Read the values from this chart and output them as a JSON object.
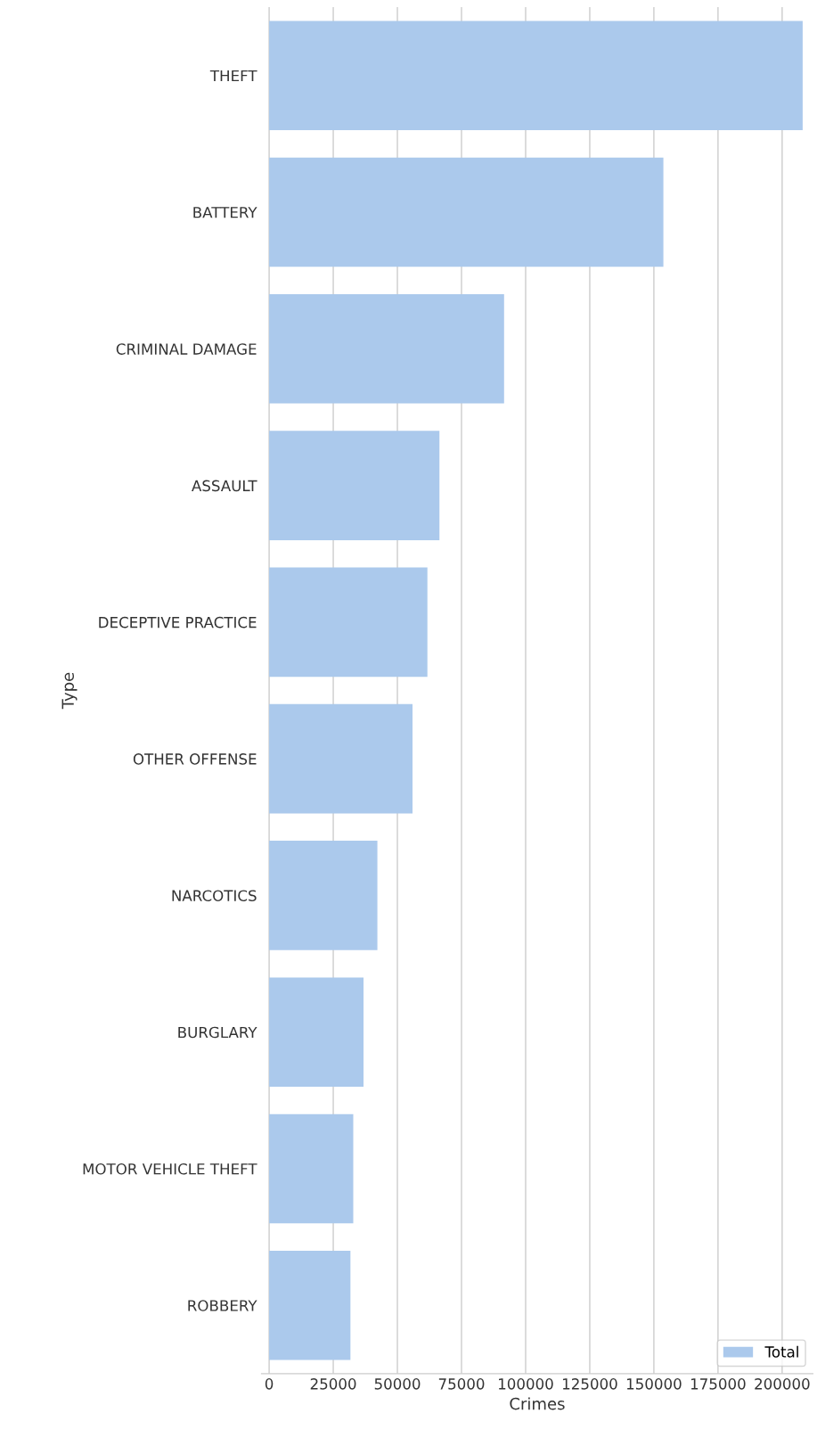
{
  "chart_data": {
    "type": "bar",
    "orientation": "horizontal",
    "xlabel": "Crimes",
    "ylabel": "Type",
    "categories": [
      "THEFT",
      "BATTERY",
      "CRIMINAL DAMAGE",
      "ASSAULT",
      "DECEPTIVE PRACTICE",
      "OTHER OFFENSE",
      "NARCOTICS",
      "BURGLARY",
      "MOTOR VEHICLE THEFT",
      "ROBBERY"
    ],
    "series": [
      {
        "name": "Total",
        "color": "#abc9ec",
        "values": [
          208000,
          153700,
          91600,
          66400,
          61700,
          55900,
          42200,
          36800,
          32800,
          31700
        ]
      }
    ],
    "xlim": [
      -3000,
      212000
    ],
    "xticks": [
      0,
      25000,
      50000,
      75000,
      100000,
      125000,
      150000,
      175000,
      200000
    ],
    "grid": "x",
    "legend": "bottom right"
  }
}
